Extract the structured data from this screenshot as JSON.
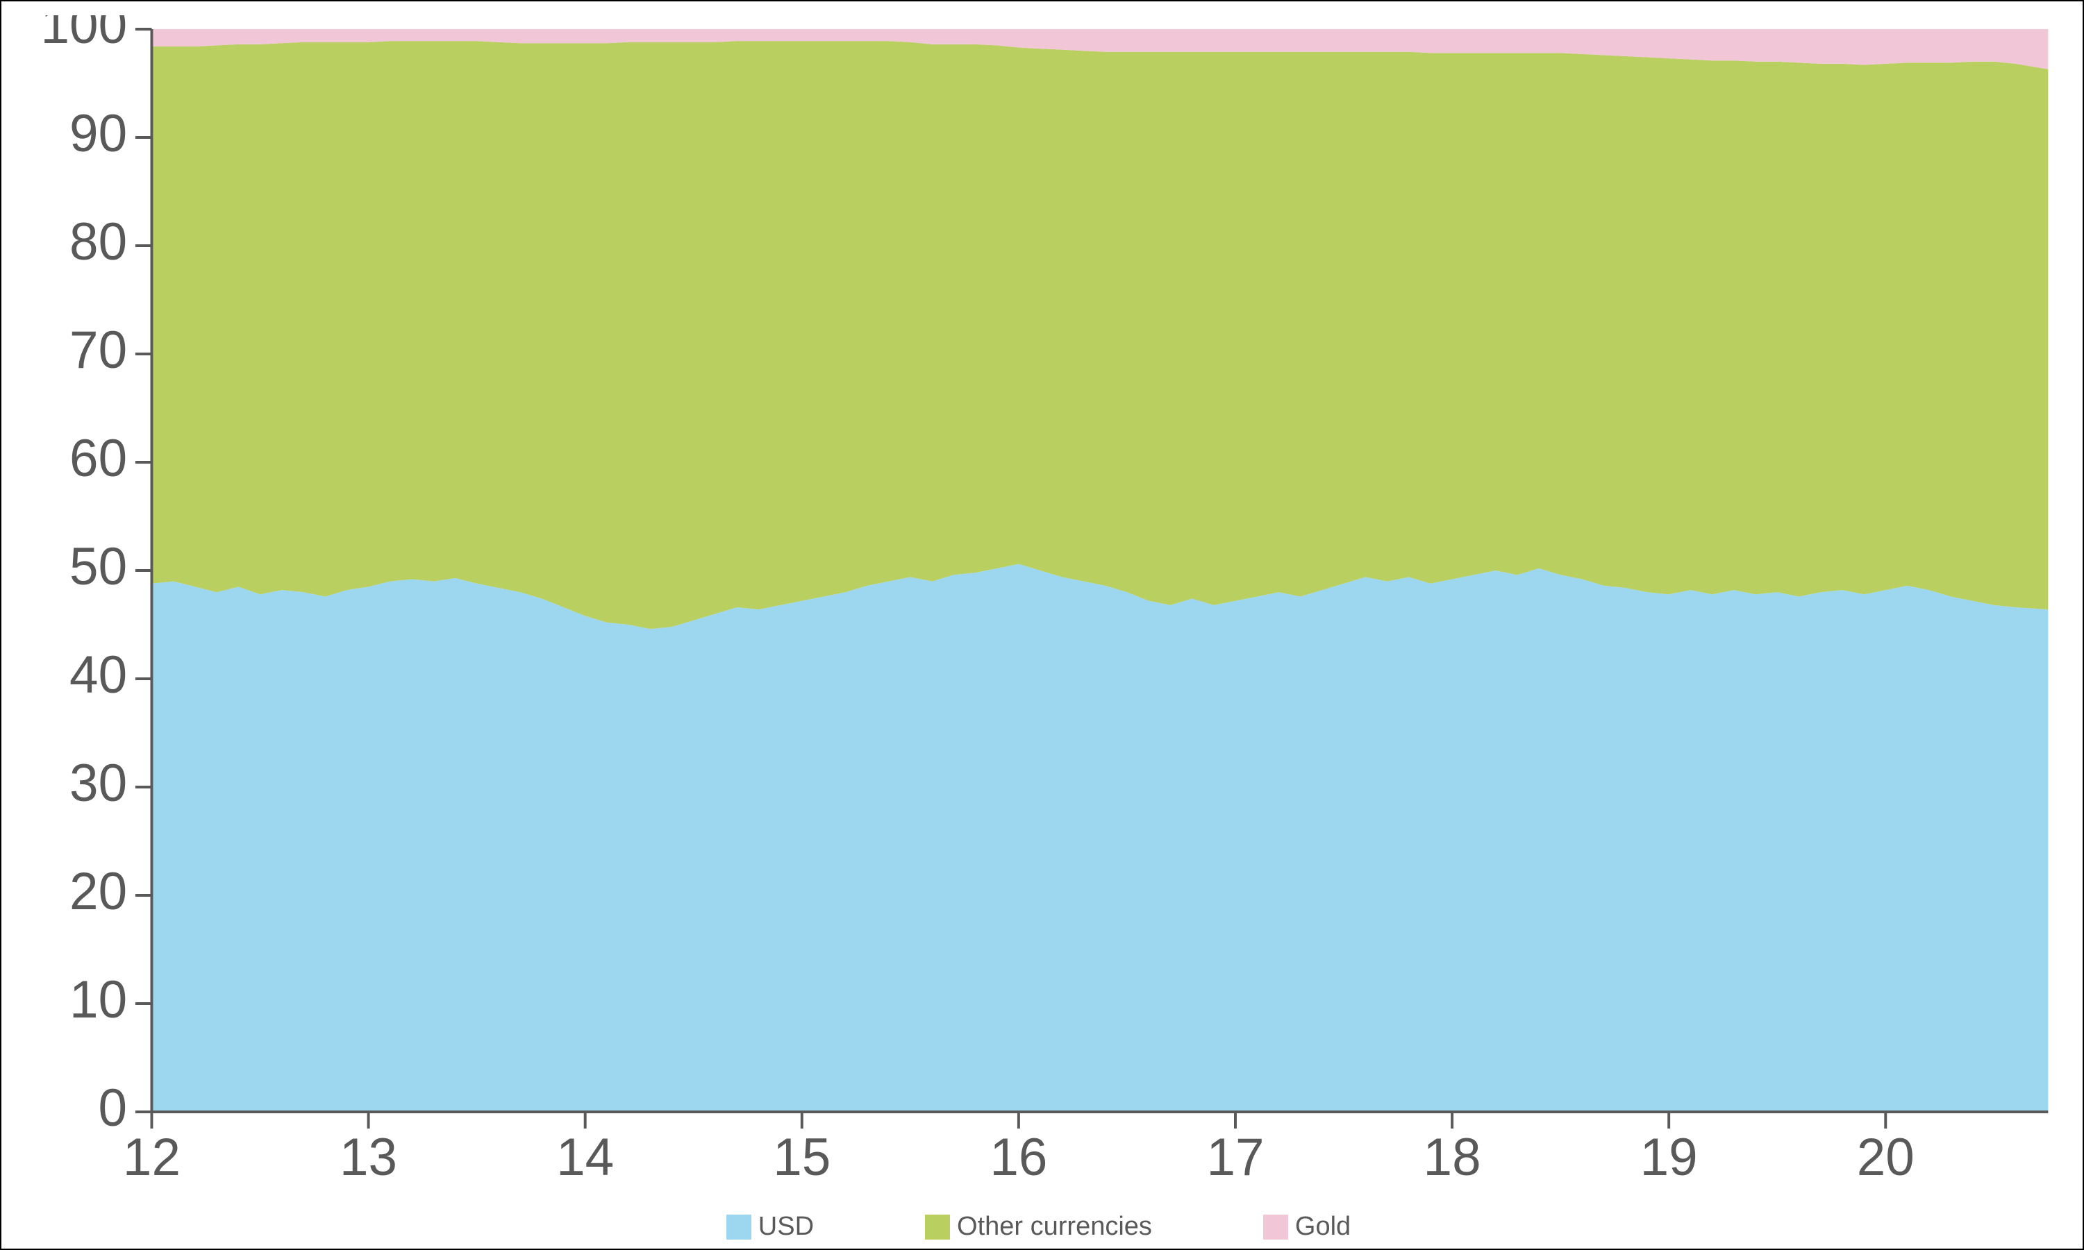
{
  "chart": {
    "type": "area-stacked",
    "background_color": "#ffffff",
    "border_color": "#000000",
    "axis_text_color": "#595959",
    "axis_fontsize": 38,
    "legend_fontsize": 38,
    "x": {
      "min": 12,
      "max": 20.75,
      "ticks": [
        12,
        13,
        14,
        15,
        16,
        17,
        18,
        19,
        20
      ],
      "tick_labels": [
        "12",
        "13",
        "14",
        "15",
        "16",
        "17",
        "18",
        "19",
        "20"
      ]
    },
    "y": {
      "min": 0,
      "max": 100,
      "ticks": [
        0,
        10,
        20,
        30,
        40,
        50,
        60,
        70,
        80,
        90,
        100
      ],
      "tick_labels": [
        "0",
        "10",
        "20",
        "30",
        "40",
        "50",
        "60",
        "70",
        "80",
        "90",
        "100"
      ]
    },
    "series": [
      {
        "key": "usd",
        "label": "USD",
        "color": "#9dd6ef",
        "x": [
          12,
          12.1,
          12.2,
          12.3,
          12.4,
          12.5,
          12.6,
          12.7,
          12.8,
          12.9,
          13,
          13.1,
          13.2,
          13.3,
          13.4,
          13.5,
          13.6,
          13.7,
          13.8,
          13.9,
          14,
          14.1,
          14.2,
          14.3,
          14.4,
          14.5,
          14.6,
          14.7,
          14.8,
          14.9,
          15,
          15.1,
          15.2,
          15.3,
          15.4,
          15.5,
          15.6,
          15.7,
          15.8,
          15.9,
          16,
          16.1,
          16.2,
          16.3,
          16.4,
          16.5,
          16.6,
          16.7,
          16.8,
          16.9,
          17,
          17.1,
          17.2,
          17.3,
          17.4,
          17.5,
          17.6,
          17.7,
          17.8,
          17.9,
          18,
          18.1,
          18.2,
          18.3,
          18.4,
          18.5,
          18.6,
          18.7,
          18.8,
          18.9,
          19,
          19.1,
          19.2,
          19.3,
          19.4,
          19.5,
          19.6,
          19.7,
          19.8,
          19.9,
          20,
          20.1,
          20.2,
          20.3,
          20.4,
          20.5,
          20.6,
          20.75
        ],
        "y": [
          48.8,
          49.0,
          48.5,
          48.0,
          48.5,
          47.8,
          48.2,
          48.0,
          47.6,
          48.2,
          48.5,
          49.0,
          49.2,
          49.0,
          49.3,
          48.8,
          48.4,
          48.0,
          47.4,
          46.6,
          45.8,
          45.2,
          45.0,
          44.6,
          44.8,
          45.4,
          46.0,
          46.6,
          46.4,
          46.8,
          47.2,
          47.6,
          48.0,
          48.6,
          49.0,
          49.4,
          49.0,
          49.6,
          49.8,
          50.2,
          50.6,
          50.0,
          49.4,
          49.0,
          48.6,
          48.0,
          47.2,
          46.8,
          47.4,
          46.8,
          47.2,
          47.6,
          48.0,
          47.6,
          48.2,
          48.8,
          49.4,
          49.0,
          49.4,
          48.8,
          49.2,
          49.6,
          50.0,
          49.6,
          50.2,
          49.6,
          49.2,
          48.6,
          48.4,
          48.0,
          47.8,
          48.2,
          47.8,
          48.2,
          47.8,
          48.0,
          47.6,
          48.0,
          48.2,
          47.8,
          48.2,
          48.6,
          48.2,
          47.6,
          47.2,
          46.8,
          46.6,
          46.4
        ]
      },
      {
        "key": "other",
        "label": "Other currencies",
        "color": "#b9cf5f",
        "x": [
          12,
          12.1,
          12.2,
          12.3,
          12.4,
          12.5,
          12.6,
          12.7,
          12.8,
          12.9,
          13,
          13.1,
          13.2,
          13.3,
          13.4,
          13.5,
          13.6,
          13.7,
          13.8,
          13.9,
          14,
          14.1,
          14.2,
          14.3,
          14.4,
          14.5,
          14.6,
          14.7,
          14.8,
          14.9,
          15,
          15.1,
          15.2,
          15.3,
          15.4,
          15.5,
          15.6,
          15.7,
          15.8,
          15.9,
          16,
          16.1,
          16.2,
          16.3,
          16.4,
          16.5,
          16.6,
          16.7,
          16.8,
          16.9,
          17,
          17.1,
          17.2,
          17.3,
          17.4,
          17.5,
          17.6,
          17.7,
          17.8,
          17.9,
          18,
          18.1,
          18.2,
          18.3,
          18.4,
          18.5,
          18.6,
          18.7,
          18.8,
          18.9,
          19,
          19.1,
          19.2,
          19.3,
          19.4,
          19.5,
          19.6,
          19.7,
          19.8,
          19.9,
          20,
          20.1,
          20.2,
          20.3,
          20.4,
          20.5,
          20.6,
          20.75
        ],
        "y": [
          49.6,
          49.4,
          49.9,
          50.5,
          50.1,
          50.8,
          50.5,
          50.8,
          51.2,
          50.6,
          50.3,
          49.9,
          49.7,
          49.9,
          49.6,
          50.1,
          50.4,
          50.7,
          51.3,
          52.1,
          52.9,
          53.5,
          53.8,
          54.2,
          54.0,
          53.4,
          52.8,
          52.3,
          52.5,
          52.1,
          51.7,
          51.3,
          50.9,
          50.3,
          49.9,
          49.4,
          49.6,
          49.0,
          48.8,
          48.3,
          47.7,
          48.2,
          48.7,
          49.0,
          49.3,
          49.9,
          50.7,
          51.1,
          50.5,
          51.1,
          50.7,
          50.3,
          49.9,
          50.3,
          49.7,
          49.1,
          48.5,
          48.9,
          48.5,
          49.0,
          48.6,
          48.2,
          47.8,
          48.2,
          47.6,
          48.2,
          48.5,
          49.0,
          49.1,
          49.4,
          49.5,
          49.0,
          49.3,
          48.9,
          49.2,
          49.0,
          49.3,
          48.8,
          48.6,
          48.9,
          48.6,
          48.3,
          48.7,
          49.3,
          49.8,
          50.2,
          50.2,
          49.9
        ]
      },
      {
        "key": "gold",
        "label": "Gold",
        "color": "#f1c6d6",
        "x": [
          12,
          12.1,
          12.2,
          12.3,
          12.4,
          12.5,
          12.6,
          12.7,
          12.8,
          12.9,
          13,
          13.1,
          13.2,
          13.3,
          13.4,
          13.5,
          13.6,
          13.7,
          13.8,
          13.9,
          14,
          14.1,
          14.2,
          14.3,
          14.4,
          14.5,
          14.6,
          14.7,
          14.8,
          14.9,
          15,
          15.1,
          15.2,
          15.3,
          15.4,
          15.5,
          15.6,
          15.7,
          15.8,
          15.9,
          16,
          16.1,
          16.2,
          16.3,
          16.4,
          16.5,
          16.6,
          16.7,
          16.8,
          16.9,
          17,
          17.1,
          17.2,
          17.3,
          17.4,
          17.5,
          17.6,
          17.7,
          17.8,
          17.9,
          18,
          18.1,
          18.2,
          18.3,
          18.4,
          18.5,
          18.6,
          18.7,
          18.8,
          18.9,
          19,
          19.1,
          19.2,
          19.3,
          19.4,
          19.5,
          19.6,
          19.7,
          19.8,
          19.9,
          20,
          20.1,
          20.2,
          20.3,
          20.4,
          20.5,
          20.6,
          20.75
        ],
        "y": [
          1.6,
          1.6,
          1.6,
          1.5,
          1.4,
          1.4,
          1.3,
          1.2,
          1.2,
          1.2,
          1.2,
          1.1,
          1.1,
          1.1,
          1.1,
          1.1,
          1.2,
          1.3,
          1.3,
          1.3,
          1.3,
          1.3,
          1.2,
          1.2,
          1.2,
          1.2,
          1.2,
          1.1,
          1.1,
          1.1,
          1.1,
          1.1,
          1.1,
          1.1,
          1.1,
          1.2,
          1.4,
          1.4,
          1.4,
          1.5,
          1.7,
          1.8,
          1.9,
          2.0,
          2.1,
          2.1,
          2.1,
          2.1,
          2.1,
          2.1,
          2.1,
          2.1,
          2.1,
          2.1,
          2.1,
          2.1,
          2.1,
          2.1,
          2.1,
          2.2,
          2.2,
          2.2,
          2.2,
          2.2,
          2.2,
          2.2,
          2.3,
          2.4,
          2.5,
          2.6,
          2.7,
          2.8,
          2.9,
          2.9,
          3.0,
          3.0,
          3.1,
          3.2,
          3.2,
          3.3,
          3.2,
          3.1,
          3.1,
          3.1,
          3.0,
          3.0,
          3.2,
          3.7
        ]
      }
    ]
  }
}
